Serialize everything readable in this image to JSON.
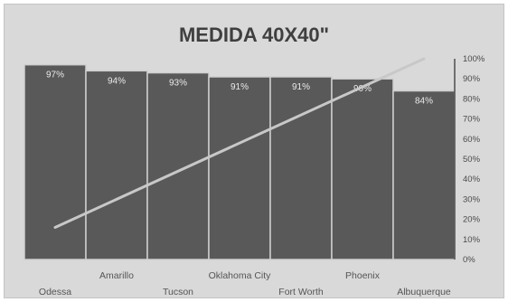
{
  "chart_data": {
    "type": "bar",
    "title": "MEDIDA 40X40\"",
    "categories": [
      "Odessa",
      "Amarillo",
      "Tucson",
      "Oklahoma City",
      "Fort Worth",
      "Phoenix",
      "Albuquerque"
    ],
    "values": [
      97,
      94,
      93,
      91,
      91,
      90,
      84
    ],
    "data_labels": [
      "97%",
      "94%",
      "93%",
      "91%",
      "91%",
      "90%",
      "84%"
    ],
    "y_axis": {
      "position": "right",
      "ylim": [
        0,
        100
      ],
      "ticks": [
        "0%",
        "10%",
        "20%",
        "30%",
        "40%",
        "50%",
        "60%",
        "70%",
        "80%",
        "90%",
        "100%"
      ]
    },
    "trendline": {
      "start_value": 16,
      "end_value": 100
    },
    "xlabel": "",
    "ylabel": "",
    "grid": false,
    "colors": {
      "bar": "#595959",
      "background": "#d9d9d9",
      "trendline": "#c8c8c8"
    }
  }
}
